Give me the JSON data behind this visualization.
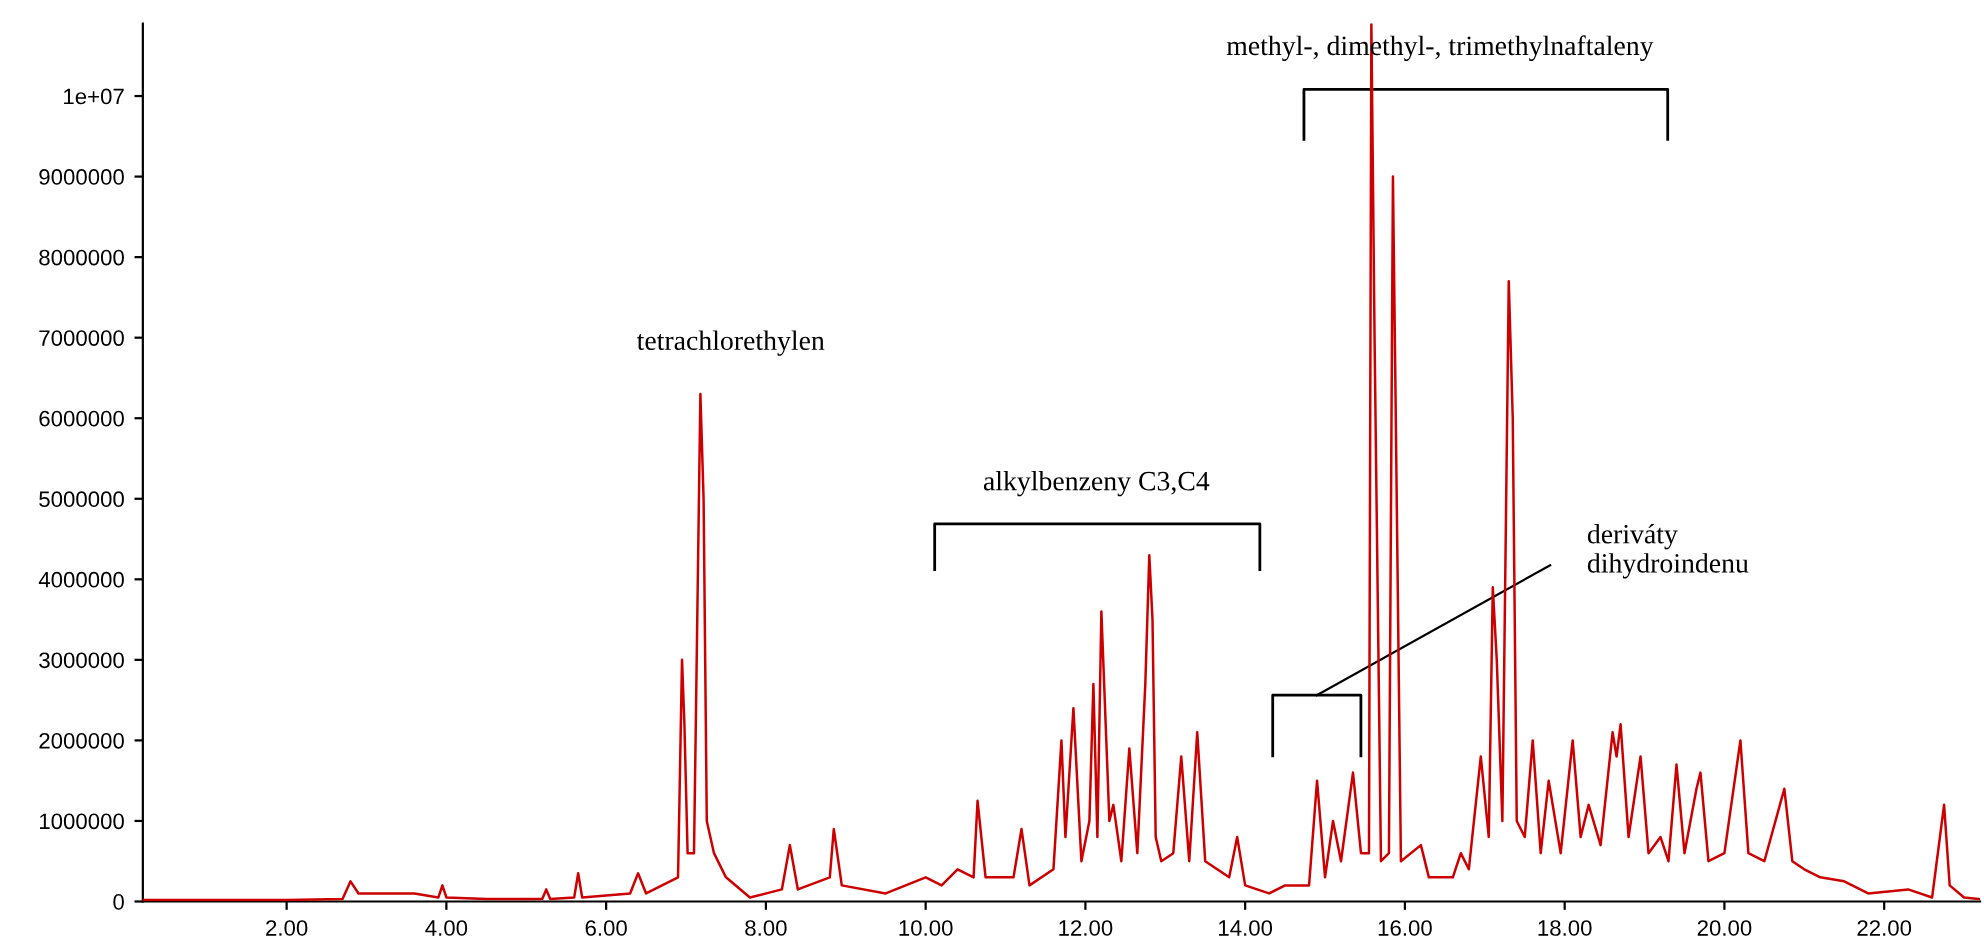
{
  "chart_data": {
    "type": "line",
    "xlim": [
      0.2,
      23.2
    ],
    "ylim": [
      0,
      10900000
    ],
    "xticks": [
      {
        "value": 2,
        "label": "2.00"
      },
      {
        "value": 4,
        "label": "4.00"
      },
      {
        "value": 6,
        "label": "6.00"
      },
      {
        "value": 8,
        "label": "8.00"
      },
      {
        "value": 10,
        "label": "10.00"
      },
      {
        "value": 12,
        "label": "12.00"
      },
      {
        "value": 14,
        "label": "14.00"
      },
      {
        "value": 16,
        "label": "16.00"
      },
      {
        "value": 18,
        "label": "18.00"
      },
      {
        "value": 20,
        "label": "20.00"
      },
      {
        "value": 22,
        "label": "22.00"
      }
    ],
    "yticks": [
      0,
      1000000,
      2000000,
      3000000,
      4000000,
      5000000,
      6000000,
      7000000,
      8000000,
      9000000,
      {
        "value": 10000000,
        "label": "1e+07"
      }
    ],
    "grid": false,
    "legend": false,
    "series": [
      {
        "color": "#cc0000",
        "x": [
          0.2,
          1.0,
          2.0,
          2.7,
          2.8,
          2.9,
          3.2,
          3.6,
          3.9,
          3.95,
          4.0,
          4.5,
          5.2,
          5.25,
          5.3,
          5.6,
          5.65,
          5.7,
          6.3,
          6.4,
          6.5,
          6.9,
          6.95,
          6.98,
          7.02,
          7.1,
          7.18,
          7.22,
          7.26,
          7.35,
          7.5,
          7.8,
          8.2,
          8.3,
          8.4,
          8.8,
          8.85,
          8.95,
          9.5,
          10.0,
          10.2,
          10.4,
          10.6,
          10.65,
          10.75,
          11.1,
          11.2,
          11.3,
          11.6,
          11.7,
          11.75,
          11.85,
          11.95,
          12.05,
          12.1,
          12.15,
          12.2,
          12.3,
          12.35,
          12.45,
          12.55,
          12.65,
          12.75,
          12.8,
          12.84,
          12.88,
          12.95,
          13.1,
          13.2,
          13.3,
          13.4,
          13.5,
          13.8,
          13.9,
          14.0,
          14.3,
          14.5,
          14.8,
          14.9,
          15.0,
          15.1,
          15.2,
          15.35,
          15.45,
          15.55,
          15.58,
          15.62,
          15.7,
          15.8,
          15.85,
          15.88,
          15.95,
          16.2,
          16.3,
          16.6,
          16.7,
          16.8,
          16.95,
          17.05,
          17.1,
          17.15,
          17.22,
          17.3,
          17.35,
          17.4,
          17.5,
          17.6,
          17.7,
          17.8,
          17.95,
          18.1,
          18.2,
          18.3,
          18.45,
          18.6,
          18.65,
          18.7,
          18.8,
          18.95,
          19.05,
          19.2,
          19.3,
          19.4,
          19.5,
          19.65,
          19.7,
          19.8,
          20.0,
          20.2,
          20.3,
          20.5,
          20.75,
          20.85,
          21.0,
          21.2,
          21.5,
          21.8,
          22.3,
          22.6,
          22.75,
          22.82,
          23.0,
          23.2
        ],
        "values": [
          20000,
          20000,
          20000,
          30000,
          250000,
          100000,
          100000,
          100000,
          50000,
          200000,
          50000,
          30000,
          30000,
          150000,
          30000,
          50000,
          350000,
          50000,
          100000,
          350000,
          100000,
          300000,
          3000000,
          2200000,
          600000,
          600000,
          6300000,
          5000000,
          1000000,
          600000,
          300000,
          50000,
          150000,
          700000,
          150000,
          300000,
          900000,
          200000,
          100000,
          300000,
          200000,
          400000,
          300000,
          1250000,
          300000,
          300000,
          900000,
          200000,
          400000,
          2000000,
          800000,
          2400000,
          500000,
          1000000,
          2700000,
          800000,
          3600000,
          1000000,
          1200000,
          500000,
          1900000,
          600000,
          2700000,
          4300000,
          3500000,
          800000,
          500000,
          600000,
          1800000,
          500000,
          2100000,
          500000,
          300000,
          800000,
          200000,
          100000,
          200000,
          200000,
          1500000,
          300000,
          1000000,
          500000,
          1600000,
          600000,
          600000,
          10900000,
          7000000,
          500000,
          600000,
          9000000,
          6500000,
          500000,
          700000,
          300000,
          300000,
          600000,
          400000,
          1800000,
          800000,
          3900000,
          3000000,
          1000000,
          7700000,
          6000000,
          1000000,
          800000,
          2000000,
          600000,
          1500000,
          600000,
          2000000,
          800000,
          1200000,
          700000,
          2100000,
          1800000,
          2200000,
          800000,
          1800000,
          600000,
          800000,
          500000,
          1700000,
          600000,
          1400000,
          1600000,
          500000,
          600000,
          2000000,
          600000,
          500000,
          1400000,
          500000,
          400000,
          300000,
          250000,
          100000,
          150000,
          50000,
          1200000,
          200000,
          50000,
          30000
        ]
      }
    ],
    "annotations": [
      "tetrachlorethylen",
      "alkylbenzeny C3,C4",
      "methyl-, dimethyl-, trimethylnaftaleny",
      "deriváty\ndihydroindenu"
    ]
  }
}
